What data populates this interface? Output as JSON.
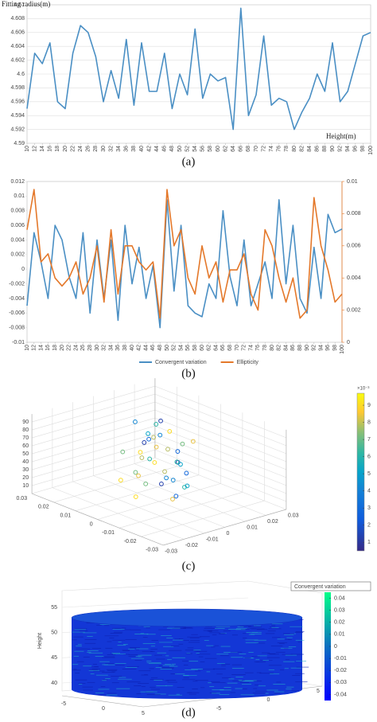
{
  "chart_data": [
    {
      "type": "line",
      "caption": "(a)",
      "ylabel": "Fitting radius(m)",
      "xlabel": "Height(m)",
      "color": "#4a8fc4",
      "grid": true,
      "x": [
        10,
        12,
        14,
        16,
        18,
        20,
        22,
        24,
        26,
        28,
        30,
        32,
        34,
        36,
        38,
        40,
        42,
        44,
        46,
        48,
        50,
        52,
        54,
        56,
        58,
        60,
        62,
        64,
        66,
        68,
        70,
        72,
        74,
        76,
        78,
        80,
        82,
        84,
        86,
        88,
        90,
        92,
        94,
        96,
        98,
        100
      ],
      "values": [
        4.595,
        4.603,
        4.6015,
        4.6045,
        4.596,
        4.595,
        4.603,
        4.607,
        4.606,
        4.6025,
        4.596,
        4.6005,
        4.5965,
        4.605,
        4.5955,
        4.6045,
        4.5975,
        4.5975,
        4.603,
        4.595,
        4.6,
        4.597,
        4.6065,
        4.5965,
        4.6,
        4.599,
        4.5995,
        4.592,
        4.6095,
        4.594,
        4.597,
        4.6055,
        4.5955,
        4.5965,
        4.596,
        4.592,
        4.5945,
        4.5965,
        4.6,
        4.5975,
        4.6045,
        4.596,
        4.5975,
        4.6015,
        4.6055,
        4.606
      ],
      "xlim": [
        10,
        100
      ],
      "xticks": [
        10,
        12,
        14,
        16,
        18,
        20,
        22,
        24,
        26,
        28,
        30,
        32,
        34,
        36,
        38,
        40,
        42,
        44,
        46,
        48,
        50,
        52,
        54,
        56,
        58,
        60,
        62,
        64,
        66,
        68,
        70,
        72,
        74,
        76,
        78,
        80,
        82,
        84,
        86,
        88,
        90,
        92,
        94,
        96,
        98,
        100
      ],
      "ylim": [
        4.59,
        4.61
      ],
      "yticks": [
        4.59,
        4.592,
        4.594,
        4.596,
        4.598,
        4.6,
        4.602,
        4.604,
        4.606,
        4.608,
        4.61
      ]
    },
    {
      "type": "line",
      "caption": "(b)",
      "grid": false,
      "legend": "bottom",
      "x": [
        10,
        12,
        14,
        16,
        18,
        20,
        22,
        24,
        26,
        28,
        30,
        32,
        34,
        36,
        38,
        40,
        42,
        44,
        46,
        48,
        50,
        52,
        54,
        56,
        58,
        60,
        62,
        64,
        66,
        68,
        70,
        72,
        74,
        76,
        78,
        80,
        82,
        84,
        86,
        88,
        90,
        92,
        94,
        96,
        98,
        100
      ],
      "series": [
        {
          "name": "Convergent variation",
          "color": "#4a8fc4",
          "values": [
            -0.005,
            0.005,
            0.001,
            -0.004,
            0.006,
            0.004,
            -0.001,
            -0.004,
            0.005,
            -0.006,
            0.004,
            -0.004,
            0.004,
            -0.007,
            0.006,
            -0.002,
            0.003,
            -0.004,
            0.0005,
            -0.008,
            0.0095,
            -0.003,
            0.006,
            -0.005,
            -0.006,
            -0.0065,
            -0.002,
            -0.004,
            0.008,
            -0.001,
            -0.005,
            0.004,
            -0.005,
            -0.002,
            0.001,
            -0.004,
            0.0095,
            -0.002,
            0.006,
            -0.004,
            -0.006,
            0.003,
            -0.004,
            0.0075,
            0.005,
            0.0055
          ]
        },
        {
          "name": "Ellipticity",
          "color": "#e4782a",
          "axis": "y2",
          "values": [
            0.007,
            0.0095,
            0.005,
            0.0055,
            0.004,
            0.0035,
            0.004,
            0.005,
            0.003,
            0.004,
            0.006,
            0.0025,
            0.007,
            0.003,
            0.006,
            0.006,
            0.005,
            0.0045,
            0.005,
            0.0015,
            0.0095,
            0.006,
            0.007,
            0.004,
            0.003,
            0.006,
            0.004,
            0.005,
            0.0025,
            0.0045,
            0.0045,
            0.0055,
            0.003,
            0.002,
            0.007,
            0.006,
            0.004,
            0.0025,
            0.004,
            0.0015,
            0.002,
            0.009,
            0.006,
            0.0045,
            0.0025,
            0.003
          ]
        }
      ],
      "xlim": [
        10,
        100
      ],
      "xticks": [
        10,
        12,
        14,
        16,
        18,
        20,
        22,
        24,
        26,
        28,
        30,
        32,
        34,
        36,
        38,
        40,
        42,
        44,
        46,
        48,
        50,
        52,
        54,
        56,
        58,
        60,
        62,
        64,
        66,
        68,
        70,
        72,
        74,
        76,
        78,
        80,
        82,
        84,
        86,
        88,
        90,
        92,
        94,
        96,
        98,
        100
      ],
      "ylim": [
        -0.01,
        0.012
      ],
      "yticks": [
        -0.01,
        -0.008,
        -0.006,
        -0.004,
        -0.002,
        0,
        0.002,
        0.004,
        0.006,
        0.008,
        0.01,
        0.012
      ],
      "y2lim": [
        0,
        0.01
      ],
      "y2ticks": [
        0,
        0.002,
        0.004,
        0.006,
        0.008,
        0.01
      ]
    },
    {
      "type": "scatter3d",
      "caption": "(c)",
      "colorbar_label": "×10⁻³",
      "x": [
        0.005,
        -0.004,
        0.008,
        -0.009,
        0.002,
        -0.006,
        0.01,
        -0.002,
        0.004,
        -0.011,
        0.007,
        -0.005,
        0.001,
        0.009,
        -0.008,
        0.003,
        -0.003,
        0.006,
        -0.007,
        0.011,
        -0.001,
        0.005,
        -0.01,
        0.002,
        0.008,
        -0.004,
        0.004,
        -0.006,
        0.006,
        -0.009,
        0,
        0.007,
        -0.002,
        0.01,
        -0.005,
        0.003
      ],
      "y": [
        -0.006,
        0.004,
        0.002,
        -0.003,
        0.009,
        0.006,
        -0.008,
        -0.001,
        0.007,
        0.002,
        -0.004,
        0.008,
        -0.009,
        0.005,
        -0.005,
        0.001,
        0.006,
        -0.002,
        0.003,
        -0.006,
        0.008,
        0.004,
        -0.002,
        -0.007,
        0.009,
        0,
        -0.003,
        0.005,
        0.001,
        0.007,
        -0.005,
        0.006,
        0.003,
        -0.001,
        -0.008,
        0.004
      ],
      "z": [
        5,
        8,
        12,
        15,
        18,
        20,
        22,
        25,
        28,
        30,
        32,
        35,
        38,
        40,
        42,
        45,
        48,
        50,
        52,
        55,
        58,
        60,
        62,
        65,
        68,
        70,
        72,
        75,
        78,
        80,
        82,
        85,
        88,
        90,
        92,
        95
      ],
      "c": [
        9,
        2,
        6,
        8,
        3,
        5,
        9,
        1,
        7,
        4,
        6,
        2,
        8,
        5,
        3,
        9,
        1,
        7,
        4,
        6,
        2,
        8,
        5,
        9,
        3,
        7,
        1,
        6,
        4,
        8,
        2,
        5,
        9,
        3,
        7,
        1
      ],
      "xlim": [
        -0.03,
        0.03
      ],
      "xticks": [
        -0.03,
        -0.02,
        -0.01,
        0,
        0.01,
        0.02,
        0.03
      ],
      "ylim": [
        -0.03,
        0.03
      ],
      "yticks": [
        -0.03,
        -0.02,
        -0.01,
        0,
        0.01,
        0.02,
        0.03
      ],
      "zlim": [
        0,
        100
      ],
      "zticks": [
        10,
        20,
        30,
        40,
        50,
        60,
        70,
        80,
        90
      ],
      "clim": [
        0.5,
        9.7
      ],
      "cticks": [
        1,
        2,
        3,
        4,
        5,
        6,
        7,
        8,
        9
      ]
    },
    {
      "type": "surface3d",
      "caption": "(d)",
      "zlabel": "Height",
      "legend_label": "Convergent variation",
      "xlim": [
        -5,
        5
      ],
      "xticks": [
        -5,
        0,
        5
      ],
      "ylim": [
        -5,
        5
      ],
      "yticks": [
        -5,
        0,
        5
      ],
      "zlim": [
        40,
        55
      ],
      "zticks": [
        40,
        45,
        50,
        55
      ],
      "clim": [
        -0.045,
        0.045
      ],
      "cticks": [
        -0.04,
        -0.03,
        -0.02,
        -0.01,
        0,
        0.01,
        0.02,
        0.03,
        0.04
      ]
    }
  ]
}
